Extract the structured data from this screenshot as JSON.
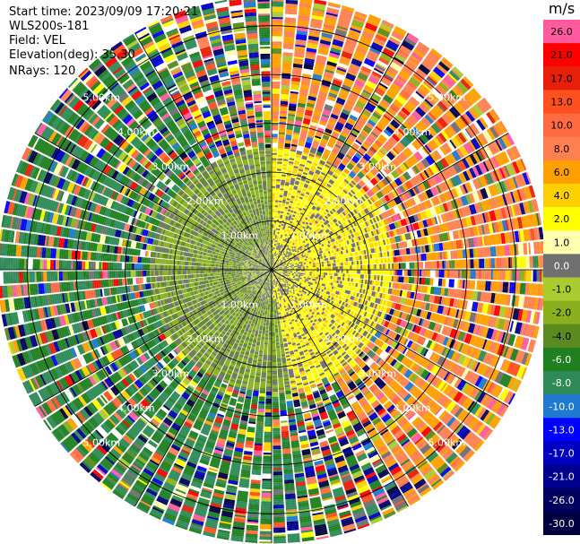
{
  "header": {
    "start_time": "Start time: 2023/09/09 17:20:21",
    "instrument": "WLS200s-181",
    "field": "Field: VEL",
    "elevation": "Elevation(deg): 35.30",
    "nrays": "NRays: 120"
  },
  "colorbar": {
    "unit": "m/s",
    "bins": [
      {
        "label": "26.0",
        "color": "#ff5aa0"
      },
      {
        "label": "21.0",
        "color": "#ff0000"
      },
      {
        "label": "17.0",
        "color": "#e8200a"
      },
      {
        "label": "13.0",
        "color": "#ff5020"
      },
      {
        "label": "10.0",
        "color": "#ff6a40"
      },
      {
        "label": "8.0",
        "color": "#ff8050"
      },
      {
        "label": "6.0",
        "color": "#ffa000"
      },
      {
        "label": "4.0",
        "color": "#ffd000"
      },
      {
        "label": "2.0",
        "color": "#ffff00"
      },
      {
        "label": "1.0",
        "color": "#ffffb0"
      },
      {
        "label": "0.0",
        "color": "#707070"
      },
      {
        "label": "-1.0",
        "color": "#aacc30"
      },
      {
        "label": "-2.0",
        "color": "#8ab020"
      },
      {
        "label": "-4.0",
        "color": "#5a8a20"
      },
      {
        "label": "-6.0",
        "color": "#208020"
      },
      {
        "label": "-8.0",
        "color": "#2e8b57"
      },
      {
        "label": "-10.0",
        "color": "#1e7ad0"
      },
      {
        "label": "-13.0",
        "color": "#0000ff"
      },
      {
        "label": "-17.0",
        "color": "#0000c0"
      },
      {
        "label": "-21.0",
        "color": "#000090"
      },
      {
        "label": "-26.0",
        "color": "#000060"
      },
      {
        "label": "-30.0",
        "color": "#000040"
      }
    ]
  },
  "chart_data": {
    "type": "heatmap",
    "projection": "polar PPI",
    "field": "VEL",
    "units": "m/s",
    "n_rays": 120,
    "range_rings_km": [
      1.0,
      2.0,
      3.0,
      4.0,
      5.0
    ],
    "range_ring_labels": [
      "1.00km",
      "2.00km",
      "3.00km",
      "4.00km",
      "5.00km"
    ],
    "spokes_deg": [
      0,
      30,
      60,
      90,
      120,
      150,
      180,
      210,
      240,
      270,
      300,
      330
    ],
    "max_range_km": 5.6,
    "inner_region_description_km": 2.5,
    "velocity_pattern": {
      "near_zero_inner_km": 0.6,
      "positive_sector_deg": [
        0,
        150
      ],
      "negative_sector_deg": [
        180,
        330
      ],
      "positive_inner_value": 2.0,
      "negative_inner_value": -2.0,
      "outer_positive_value": 8.0,
      "outer_negative_value": -8.0
    },
    "colorscale_labels": [
      "26.0",
      "21.0",
      "17.0",
      "13.0",
      "10.0",
      "8.0",
      "6.0",
      "4.0",
      "2.0",
      "1.0",
      "0.0",
      "-1.0",
      "-2.0",
      "-4.0",
      "-6.0",
      "-8.0",
      "-10.0",
      "-13.0",
      "-17.0",
      "-21.0",
      "-26.0",
      "-30.0"
    ]
  }
}
